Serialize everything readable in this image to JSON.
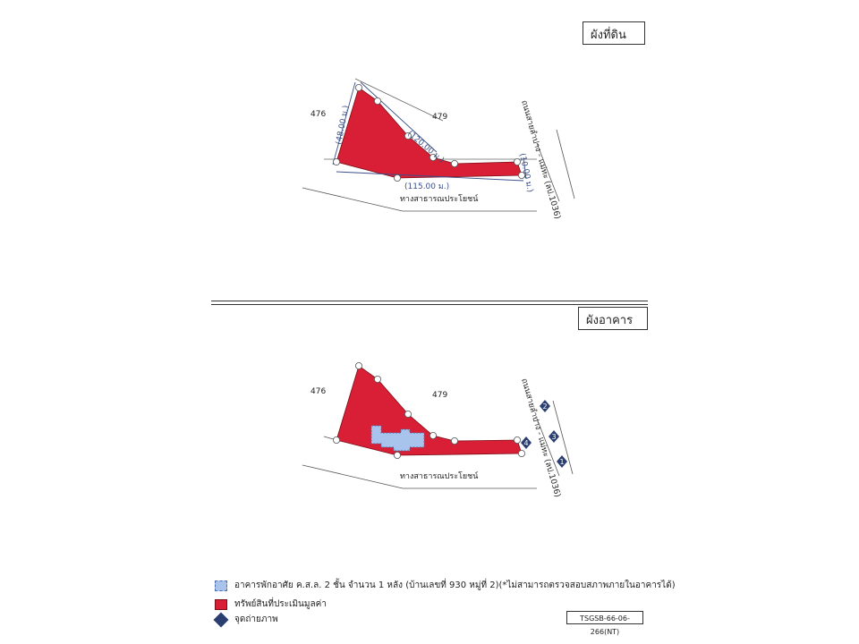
{
  "land_plan": {
    "title": "ผังที่ดิน",
    "plot_left": "476",
    "plot_right": "479",
    "dim_left": "(48.00 ม.)",
    "dim_top": "(120.00 ม.)",
    "dim_right": "(10.00 ม.)",
    "dim_bottom": "(115.00 ม.)",
    "road_public": "ทางสาธารณประโยชน์",
    "road_main": "ถนนสายลำปาง - แม่ทะ (ลป.1036)"
  },
  "building_plan": {
    "title": "ผังอาคาร",
    "plot_left": "476",
    "plot_right": "479",
    "road_public": "ทางสาธารณประโยชน์",
    "road_main": "ถนนสายลำปาง - แม่ทะ (ลป.1036)",
    "photo_points": [
      "1",
      "2",
      "3",
      "4"
    ]
  },
  "legend": {
    "building": "อาคารพักอาศัย ค.ส.ล. 2 ชั้น จำนวน 1 หลัง (บ้านเลขที่ 930 หมู่ที่ 2)(*ไม่สามารถตรวจสอบสภาพภายในอาคารได้)",
    "property": "ทรัพย์สินที่ประเมินมูลค่า",
    "photo_point": "จุดถ่ายภาพ"
  },
  "reference_code": "TSGSB-66-06-266(NT)",
  "colors": {
    "property_fill": "#d81f35",
    "building_fill": "#a8c4ec",
    "photo_marker": "#2a3f70",
    "dimension_line": "#3a4f8a"
  }
}
